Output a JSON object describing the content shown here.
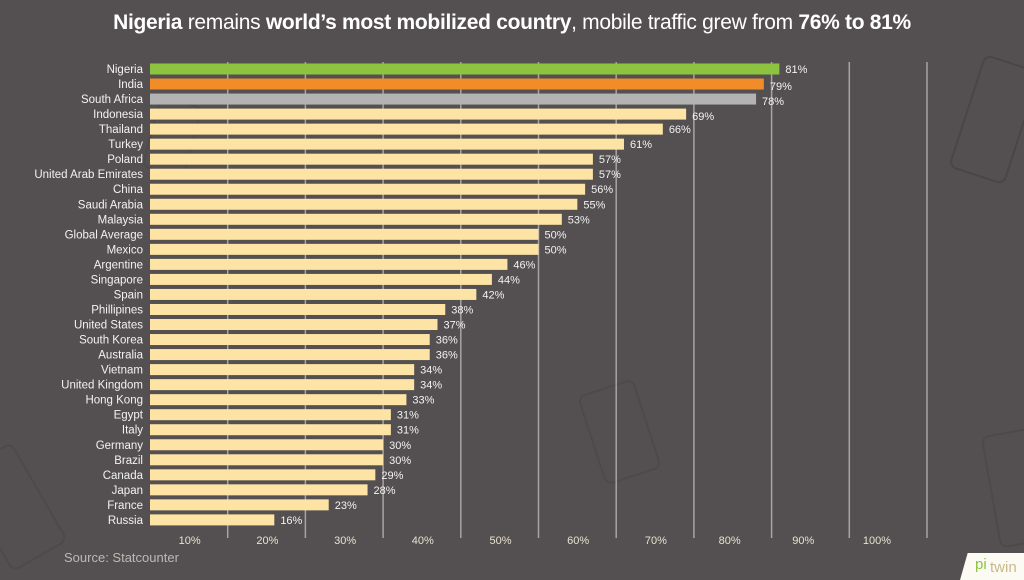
{
  "title": {
    "part1": "Nigeria",
    "part2": " remains ",
    "part3": "world’s most mobilized country",
    "part4": ", mobile traffic grew from ",
    "part5": "76% to 81%"
  },
  "source": "Source:  Statcounter",
  "logo": {
    "text_a": "twin",
    "text_b": "pi"
  },
  "colors": {
    "background": "#545051",
    "highlight_1": "#8dc43f",
    "highlight_2": "#f28c28",
    "highlight_3": "#b3b3b3",
    "default_bar": "#fde4a5",
    "grid": "#a8a4a3"
  },
  "chart_data": {
    "type": "bar",
    "orientation": "horizontal",
    "title": "Nigeria remains world’s most mobilized country, mobile traffic grew from 76% to 81%",
    "xlabel": "",
    "ylabel": "",
    "xlim": [
      0,
      100
    ],
    "grid": true,
    "categories": [
      "Nigeria",
      "India",
      "South Africa",
      "Indonesia",
      "Thailand",
      "Turkey",
      "Poland",
      "United Arab Emirates",
      "China",
      "Saudi Arabia",
      "Malaysia",
      "Global Average",
      "Mexico",
      "Argentine",
      "Singapore",
      "Spain",
      "Phillipines",
      "United States",
      "South Korea",
      "Australia",
      "Vietnam",
      "United Kingdom",
      "Hong Kong",
      "Egypt",
      "Italy",
      "Germany",
      "Brazil",
      "Canada",
      "Japan",
      "France",
      "Russia"
    ],
    "values": [
      81,
      79,
      78,
      69,
      66,
      61,
      57,
      57,
      56,
      55,
      53,
      50,
      50,
      46,
      44,
      42,
      38,
      37,
      36,
      36,
      34,
      34,
      33,
      31,
      31,
      30,
      30,
      29,
      28,
      23,
      16
    ],
    "value_labels": [
      "81%",
      "79%",
      "78%",
      "69%",
      "66%",
      "61%",
      "57%",
      "57%",
      "56%",
      "55%",
      "53%",
      "50%",
      "50%",
      "46%",
      "44%",
      "42%",
      "38%",
      "37%",
      "36%",
      "36%",
      "34%",
      "34%",
      "33%",
      "31%",
      "31%",
      "30%",
      "30%",
      "29%",
      "28%",
      "23%",
      "16%"
    ],
    "bar_colors": [
      "#8dc43f",
      "#f28c28",
      "#b3b3b3"
    ],
    "x_tick_labels": [
      "10%",
      "20%",
      "30%",
      "40%",
      "50%",
      "60%",
      "70%",
      "80%",
      "90%",
      "100%"
    ]
  }
}
